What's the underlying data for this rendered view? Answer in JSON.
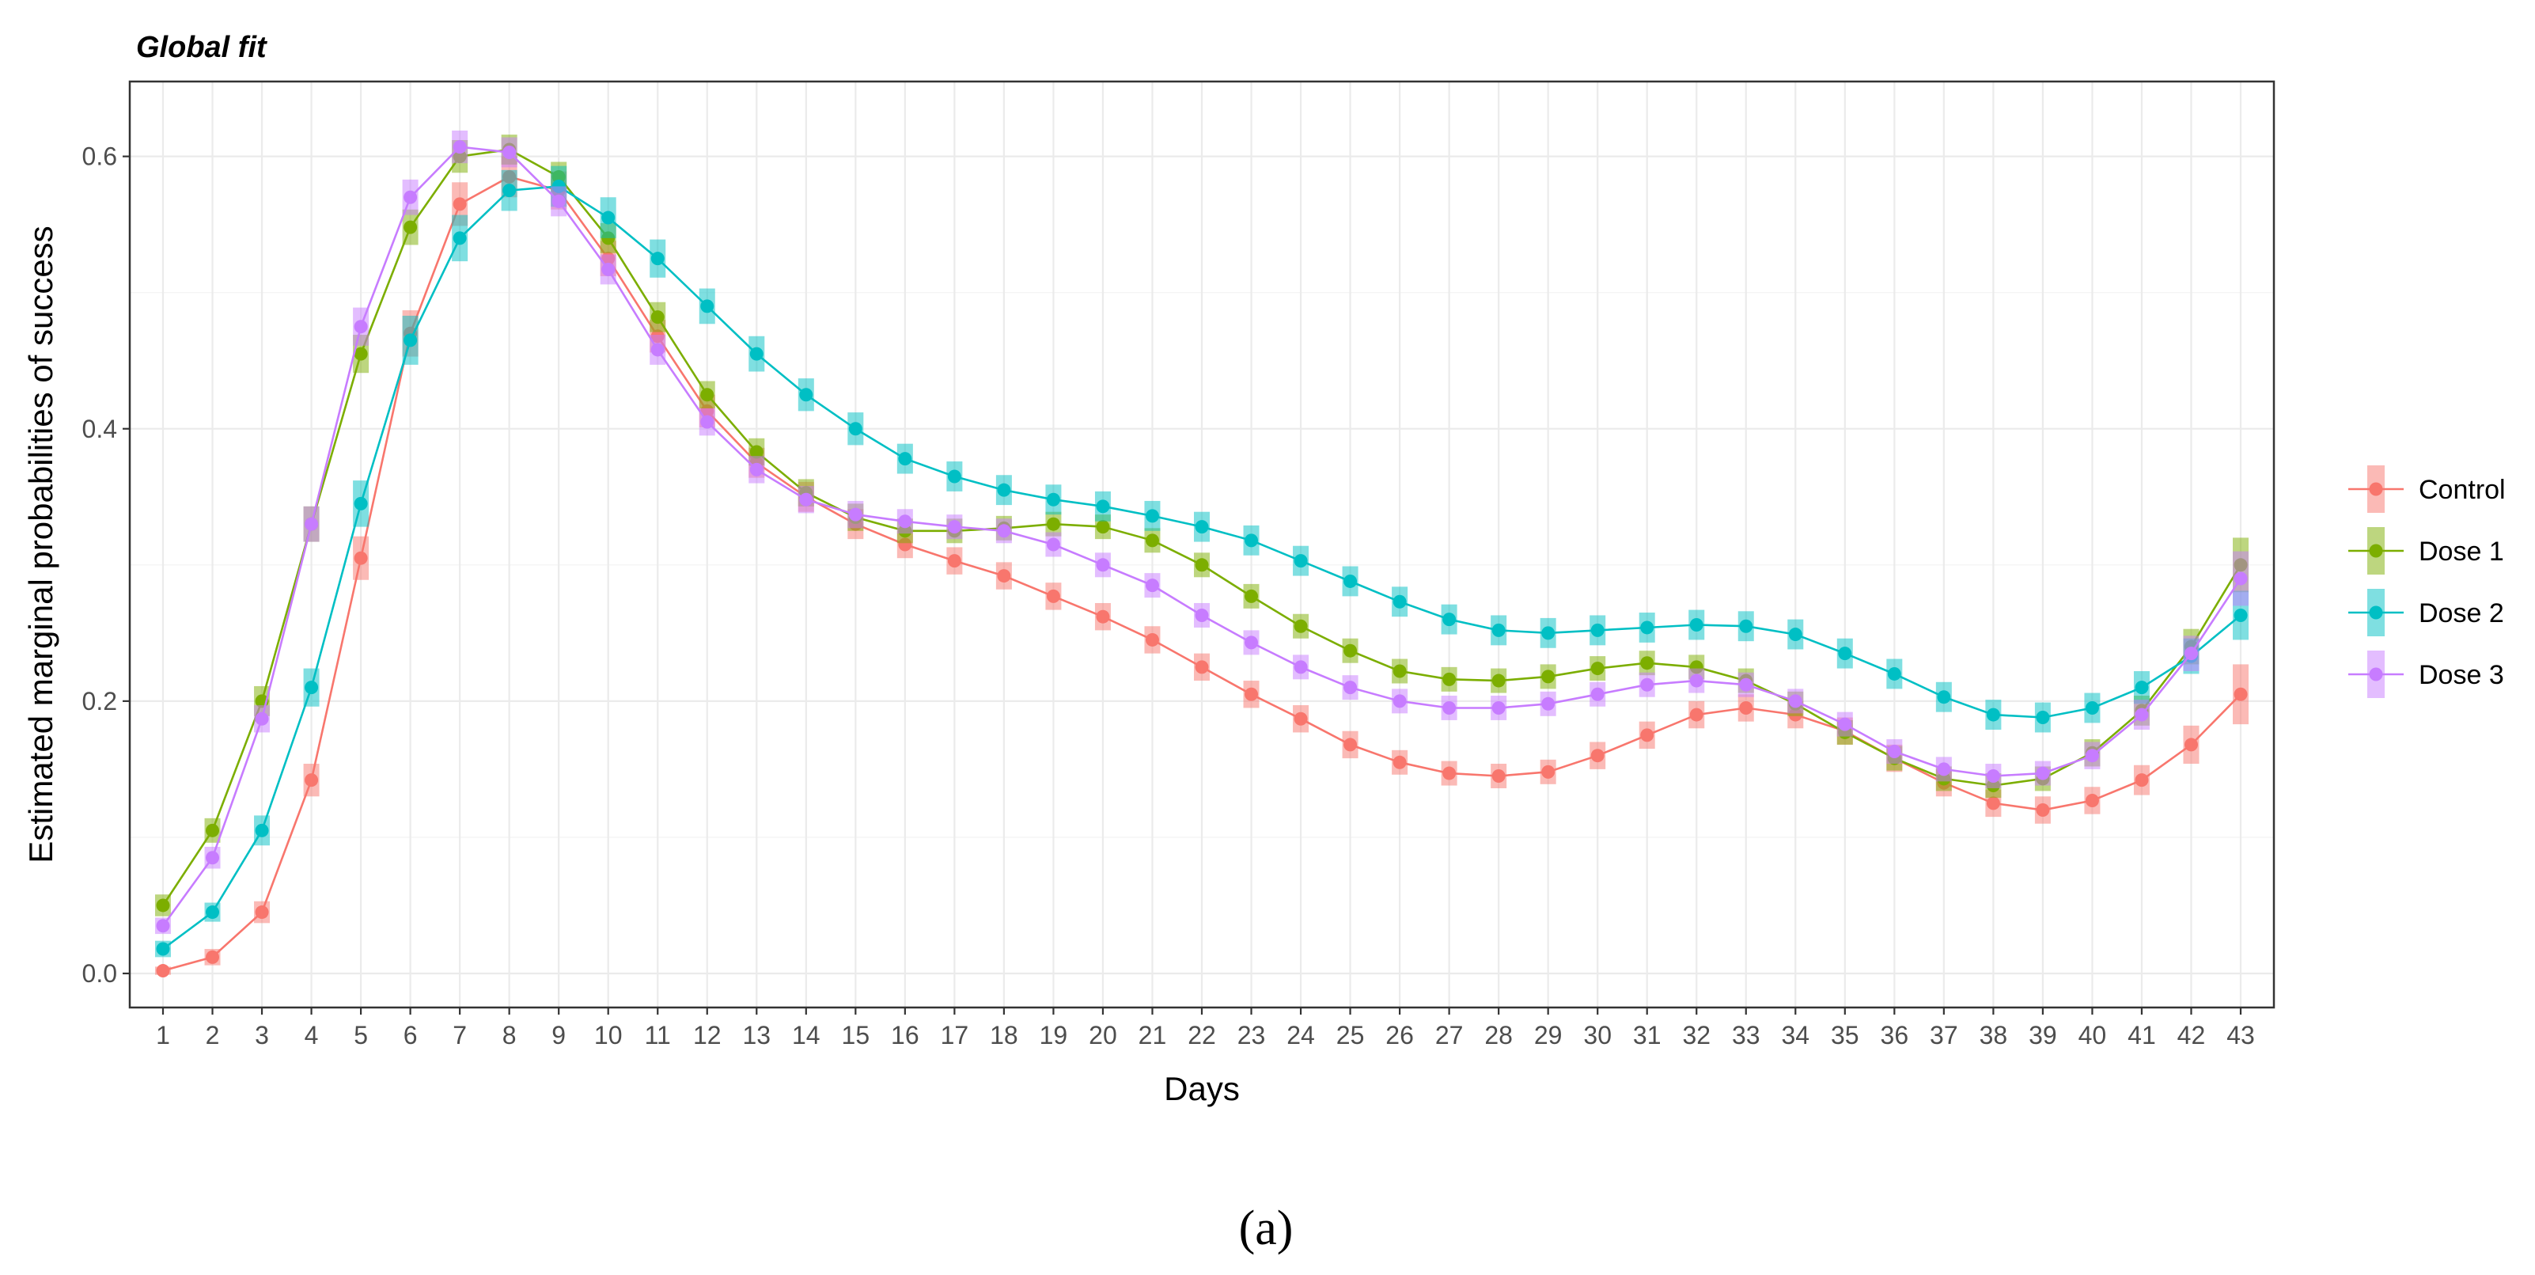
{
  "chart_data": {
    "type": "line",
    "title": "Global fit",
    "xlabel": "Days",
    "ylabel": "Estimated marginal probabilities of success",
    "caption": "(a)",
    "xlim": [
      1,
      43
    ],
    "ylim": [
      -0.025,
      0.655
    ],
    "x": [
      1,
      2,
      3,
      4,
      5,
      6,
      7,
      8,
      9,
      10,
      11,
      12,
      13,
      14,
      15,
      16,
      17,
      18,
      19,
      20,
      21,
      22,
      23,
      24,
      25,
      26,
      27,
      28,
      29,
      30,
      31,
      32,
      33,
      34,
      35,
      36,
      37,
      38,
      39,
      40,
      41,
      42,
      43
    ],
    "y_ticks": [
      0.0,
      0.2,
      0.4,
      0.6
    ],
    "y_tick_labels": [
      "0.0",
      "0.2",
      "0.4",
      "0.6"
    ],
    "grid": true,
    "legend_position": "right",
    "series": [
      {
        "name": "Control",
        "color": "#F8766D",
        "values": [
          0.002,
          0.012,
          0.045,
          0.142,
          0.305,
          0.47,
          0.565,
          0.585,
          0.575,
          0.525,
          0.468,
          0.413,
          0.375,
          0.35,
          0.33,
          0.315,
          0.303,
          0.292,
          0.277,
          0.262,
          0.245,
          0.225,
          0.205,
          0.187,
          0.168,
          0.155,
          0.147,
          0.145,
          0.148,
          0.16,
          0.175,
          0.19,
          0.195,
          0.19,
          0.178,
          0.158,
          0.14,
          0.125,
          0.12,
          0.127,
          0.142,
          0.168,
          0.205
        ],
        "err": [
          0.003,
          0.006,
          0.008,
          0.012,
          0.016,
          0.017,
          0.016,
          0.015,
          0.014,
          0.013,
          0.012,
          0.012,
          0.011,
          0.011,
          0.011,
          0.01,
          0.01,
          0.01,
          0.01,
          0.01,
          0.01,
          0.01,
          0.01,
          0.01,
          0.01,
          0.009,
          0.009,
          0.009,
          0.009,
          0.01,
          0.01,
          0.01,
          0.01,
          0.01,
          0.01,
          0.01,
          0.01,
          0.01,
          0.01,
          0.01,
          0.011,
          0.014,
          0.022
        ]
      },
      {
        "name": "Dose 1",
        "color": "#7CAE00",
        "values": [
          0.05,
          0.105,
          0.2,
          0.33,
          0.455,
          0.548,
          0.6,
          0.605,
          0.585,
          0.54,
          0.482,
          0.425,
          0.383,
          0.353,
          0.335,
          0.325,
          0.325,
          0.327,
          0.33,
          0.328,
          0.318,
          0.3,
          0.277,
          0.255,
          0.237,
          0.222,
          0.216,
          0.215,
          0.218,
          0.224,
          0.228,
          0.225,
          0.215,
          0.198,
          0.177,
          0.158,
          0.143,
          0.138,
          0.143,
          0.162,
          0.193,
          0.24,
          0.3
        ],
        "err": [
          0.008,
          0.009,
          0.011,
          0.013,
          0.014,
          0.013,
          0.012,
          0.011,
          0.011,
          0.011,
          0.011,
          0.01,
          0.01,
          0.01,
          0.01,
          0.009,
          0.009,
          0.009,
          0.009,
          0.009,
          0.009,
          0.009,
          0.009,
          0.009,
          0.009,
          0.009,
          0.009,
          0.009,
          0.009,
          0.009,
          0.009,
          0.009,
          0.009,
          0.009,
          0.009,
          0.009,
          0.009,
          0.009,
          0.009,
          0.01,
          0.011,
          0.013,
          0.02
        ]
      },
      {
        "name": "Dose 2",
        "color": "#00BFC4",
        "values": [
          0.018,
          0.045,
          0.105,
          0.21,
          0.345,
          0.465,
          0.54,
          0.575,
          0.578,
          0.555,
          0.525,
          0.49,
          0.455,
          0.425,
          0.4,
          0.378,
          0.365,
          0.355,
          0.348,
          0.343,
          0.336,
          0.328,
          0.318,
          0.303,
          0.288,
          0.273,
          0.26,
          0.252,
          0.25,
          0.252,
          0.254,
          0.256,
          0.255,
          0.249,
          0.235,
          0.22,
          0.203,
          0.19,
          0.188,
          0.195,
          0.21,
          0.233,
          0.263
        ],
        "err": [
          0.006,
          0.007,
          0.011,
          0.014,
          0.017,
          0.018,
          0.017,
          0.015,
          0.015,
          0.015,
          0.014,
          0.013,
          0.013,
          0.012,
          0.012,
          0.011,
          0.011,
          0.011,
          0.011,
          0.011,
          0.011,
          0.011,
          0.011,
          0.011,
          0.011,
          0.011,
          0.011,
          0.011,
          0.011,
          0.011,
          0.011,
          0.011,
          0.011,
          0.011,
          0.011,
          0.011,
          0.011,
          0.011,
          0.011,
          0.011,
          0.012,
          0.013,
          0.018
        ]
      },
      {
        "name": "Dose 3",
        "color": "#C77CFF",
        "values": [
          0.035,
          0.085,
          0.187,
          0.33,
          0.475,
          0.57,
          0.607,
          0.603,
          0.567,
          0.517,
          0.458,
          0.405,
          0.37,
          0.348,
          0.337,
          0.332,
          0.328,
          0.325,
          0.315,
          0.3,
          0.285,
          0.263,
          0.243,
          0.225,
          0.21,
          0.2,
          0.195,
          0.195,
          0.198,
          0.205,
          0.212,
          0.215,
          0.212,
          0.2,
          0.183,
          0.163,
          0.15,
          0.145,
          0.147,
          0.16,
          0.19,
          0.235,
          0.29
        ],
        "err": [
          0.006,
          0.008,
          0.01,
          0.013,
          0.014,
          0.013,
          0.012,
          0.011,
          0.011,
          0.011,
          0.011,
          0.01,
          0.01,
          0.01,
          0.01,
          0.009,
          0.009,
          0.009,
          0.009,
          0.009,
          0.009,
          0.009,
          0.009,
          0.009,
          0.009,
          0.009,
          0.009,
          0.009,
          0.009,
          0.009,
          0.009,
          0.009,
          0.009,
          0.009,
          0.009,
          0.009,
          0.009,
          0.009,
          0.009,
          0.01,
          0.011,
          0.013,
          0.02
        ]
      }
    ]
  }
}
